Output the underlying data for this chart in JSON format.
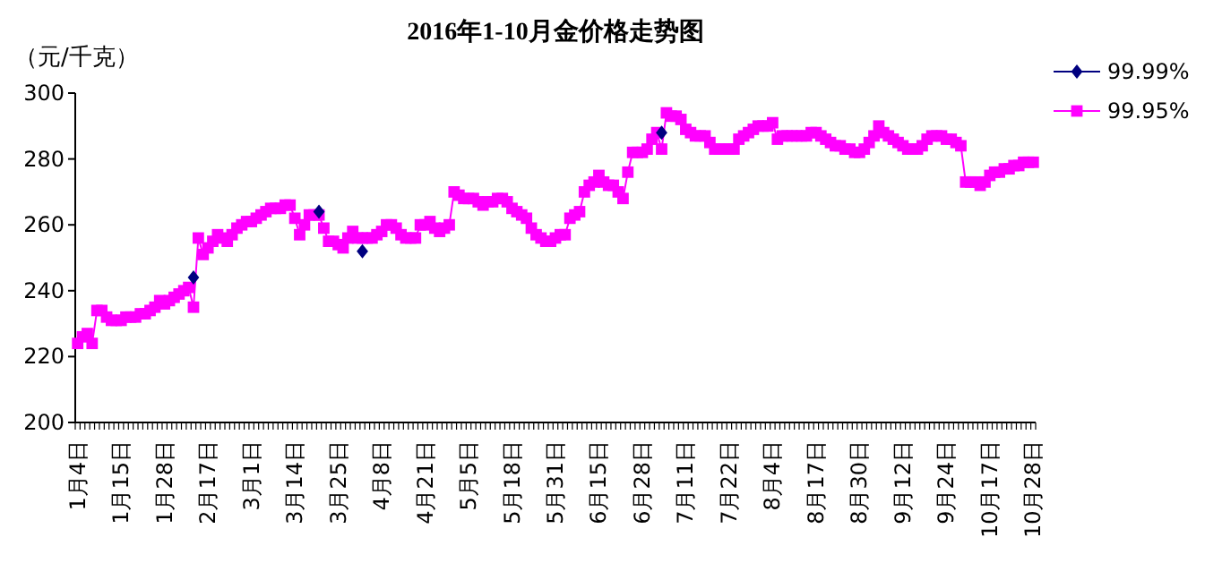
{
  "chart_data": {
    "type": "line",
    "title": "2016年1-10月金价格走势图",
    "ylabel": "（元/千克）",
    "categories": [
      "1月4日",
      null,
      null,
      null,
      null,
      null,
      null,
      null,
      null,
      "1月15日",
      null,
      null,
      null,
      null,
      null,
      null,
      null,
      null,
      "1月28日",
      null,
      null,
      null,
      null,
      null,
      null,
      null,
      null,
      "2月17日",
      null,
      null,
      null,
      null,
      null,
      null,
      null,
      null,
      "3月1日",
      null,
      null,
      null,
      null,
      null,
      null,
      null,
      null,
      "3月14日",
      null,
      null,
      null,
      null,
      null,
      null,
      null,
      null,
      "3月25日",
      null,
      null,
      null,
      null,
      null,
      null,
      null,
      null,
      "4月8日",
      null,
      null,
      null,
      null,
      null,
      null,
      null,
      null,
      "4月21日",
      null,
      null,
      null,
      null,
      null,
      null,
      null,
      null,
      "5月5日",
      null,
      null,
      null,
      null,
      null,
      null,
      null,
      null,
      "5月18日",
      null,
      null,
      null,
      null,
      null,
      null,
      null,
      null,
      "5月31日",
      null,
      null,
      null,
      null,
      null,
      null,
      null,
      null,
      "6月15日",
      null,
      null,
      null,
      null,
      null,
      null,
      null,
      null,
      "6月28日",
      null,
      null,
      null,
      null,
      null,
      null,
      null,
      null,
      "7月11日",
      null,
      null,
      null,
      null,
      null,
      null,
      null,
      null,
      "7月22日",
      null,
      null,
      null,
      null,
      null,
      null,
      null,
      null,
      "8月4日",
      null,
      null,
      null,
      null,
      null,
      null,
      null,
      null,
      "8月17日",
      null,
      null,
      null,
      null,
      null,
      null,
      null,
      null,
      "8月30日",
      null,
      null,
      null,
      null,
      null,
      null,
      null,
      null,
      "9月12日",
      null,
      null,
      null,
      null,
      null,
      null,
      null,
      null,
      "9月24日",
      null,
      null,
      null,
      null,
      null,
      null,
      null,
      null,
      "10月17日",
      null,
      null,
      null,
      null,
      null,
      null,
      null,
      null,
      "10月28日"
    ],
    "series": [
      {
        "name": "99.99%",
        "type": "scatter",
        "color": "#000080",
        "marker": "diamond",
        "values": [
          null,
          null,
          null,
          null,
          null,
          null,
          null,
          null,
          null,
          null,
          null,
          null,
          null,
          null,
          null,
          null,
          null,
          null,
          null,
          null,
          null,
          null,
          null,
          null,
          244,
          null,
          null,
          null,
          null,
          null,
          null,
          null,
          null,
          null,
          null,
          null,
          null,
          null,
          null,
          null,
          null,
          null,
          null,
          null,
          null,
          null,
          null,
          null,
          null,
          null,
          264,
          null,
          null,
          null,
          null,
          null,
          null,
          null,
          null,
          252,
          null,
          null,
          null,
          null,
          null,
          null,
          null,
          null,
          null,
          null,
          null,
          null,
          null,
          null,
          null,
          null,
          null,
          null,
          null,
          null,
          null,
          null,
          null,
          null,
          null,
          null,
          null,
          null,
          null,
          null,
          null,
          null,
          null,
          null,
          null,
          null,
          null,
          null,
          null,
          null,
          null,
          null,
          null,
          null,
          null,
          null,
          null,
          null,
          null,
          null,
          null,
          null,
          null,
          null,
          null,
          null,
          null,
          null,
          null,
          null,
          null,
          288,
          null,
          null,
          null,
          null,
          null,
          null,
          null,
          null,
          null,
          null,
          null,
          null,
          null,
          null,
          null,
          null,
          null,
          null,
          null,
          null,
          null,
          null,
          null,
          null,
          null,
          null,
          null,
          null,
          null,
          null,
          null,
          null,
          null,
          null,
          null,
          null,
          null,
          null,
          null,
          null,
          null,
          null,
          null,
          null,
          null,
          null,
          null,
          null,
          null,
          null,
          null,
          null,
          null,
          null,
          null,
          null,
          null,
          null,
          null,
          null,
          null,
          null,
          null,
          null,
          null,
          null,
          null,
          null,
          null,
          null,
          null,
          null,
          null,
          null,
          null,
          null,
          null
        ]
      },
      {
        "name": "99.95%",
        "color": "#ff00ff",
        "marker": "square",
        "values": [
          224,
          226,
          227,
          224,
          234,
          234,
          232,
          231,
          231,
          231,
          232,
          232,
          232,
          233,
          233,
          234,
          235,
          237,
          236,
          237,
          238,
          239,
          240,
          241,
          235,
          256,
          251,
          253,
          255,
          257,
          256,
          255,
          257,
          259,
          260,
          261,
          261,
          262,
          263,
          264,
          265,
          265,
          265,
          266,
          266,
          262,
          257,
          260,
          263,
          263,
          263,
          259,
          255,
          255,
          254,
          253,
          256,
          258,
          256,
          256,
          256,
          256,
          257,
          258,
          260,
          260,
          259,
          257,
          256,
          256,
          256,
          260,
          260,
          261,
          259,
          258,
          259,
          260,
          270,
          269,
          268,
          268,
          268,
          267,
          266,
          267,
          267,
          268,
          268,
          267,
          265,
          264,
          263,
          262,
          259,
          257,
          256,
          255,
          255,
          256,
          257,
          257,
          262,
          263,
          264,
          270,
          272,
          273,
          275,
          273,
          272,
          272,
          270,
          268,
          276,
          282,
          282,
          282,
          283,
          286,
          288,
          283,
          294,
          293,
          293,
          292,
          289,
          288,
          287,
          287,
          287,
          285,
          283,
          283,
          283,
          283,
          283,
          286,
          287,
          288,
          289,
          290,
          290,
          290,
          291,
          286,
          287,
          287,
          287,
          287,
          287,
          287,
          288,
          288,
          287,
          286,
          285,
          284,
          284,
          283,
          283,
          282,
          282,
          283,
          285,
          287,
          290,
          288,
          287,
          286,
          285,
          284,
          283,
          283,
          283,
          284,
          286,
          287,
          287,
          287,
          286,
          286,
          285,
          284,
          273,
          273,
          273,
          272,
          273,
          275,
          276,
          276,
          277,
          277,
          278,
          278,
          279,
          279,
          279
        ]
      }
    ],
    "ylim": [
      200,
      300
    ],
    "yticks": [
      200,
      220,
      240,
      260,
      280,
      300
    ],
    "grid": false,
    "legend": "right",
    "line_style": "solid"
  }
}
